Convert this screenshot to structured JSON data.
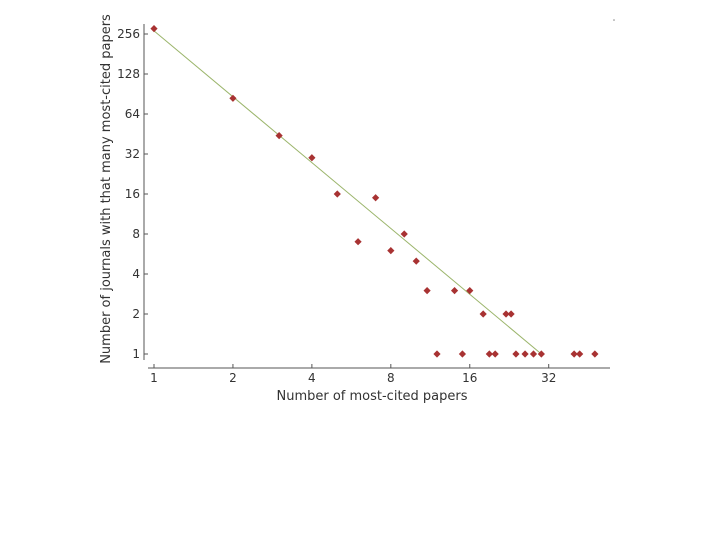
{
  "chart_data": {
    "type": "scatter",
    "title": "",
    "xlabel": "Number of most-cited papers",
    "ylabel": "Number of journals with that many most-cited papers",
    "x_scale": "log2",
    "y_scale": "log2",
    "xlim": [
      1,
      52
    ],
    "ylim": [
      1,
      256
    ],
    "x_ticks": [
      1,
      2,
      4,
      8,
      16,
      32
    ],
    "x_tick_labels": [
      "1",
      "2",
      "4",
      "8",
      "16",
      "32"
    ],
    "y_ticks": [
      1,
      2,
      4,
      8,
      16,
      32,
      64,
      128,
      256
    ],
    "y_tick_labels": [
      "1",
      "2",
      "4",
      "8",
      "16",
      "32",
      "64",
      "128",
      "256"
    ],
    "grid": false,
    "legend": "none",
    "marker_color": "#a83232",
    "fit_line_color": "#9bb56b",
    "series": [
      {
        "x": [
          1,
          2,
          3,
          4,
          5,
          6,
          7,
          8,
          9,
          10,
          11,
          12,
          14,
          15,
          16,
          18,
          19,
          20,
          22,
          23,
          24,
          26,
          28,
          30,
          40,
          42,
          48
        ],
        "y": [
          281,
          84,
          44,
          30,
          16,
          7,
          15,
          6,
          8,
          5,
          3,
          1,
          3,
          1,
          3,
          2,
          1,
          1,
          2,
          2,
          1,
          1,
          1,
          1,
          1,
          1,
          1
        ]
      }
    ],
    "fit_line": {
      "x": [
        1,
        30
      ],
      "y": [
        270,
        1
      ]
    }
  }
}
